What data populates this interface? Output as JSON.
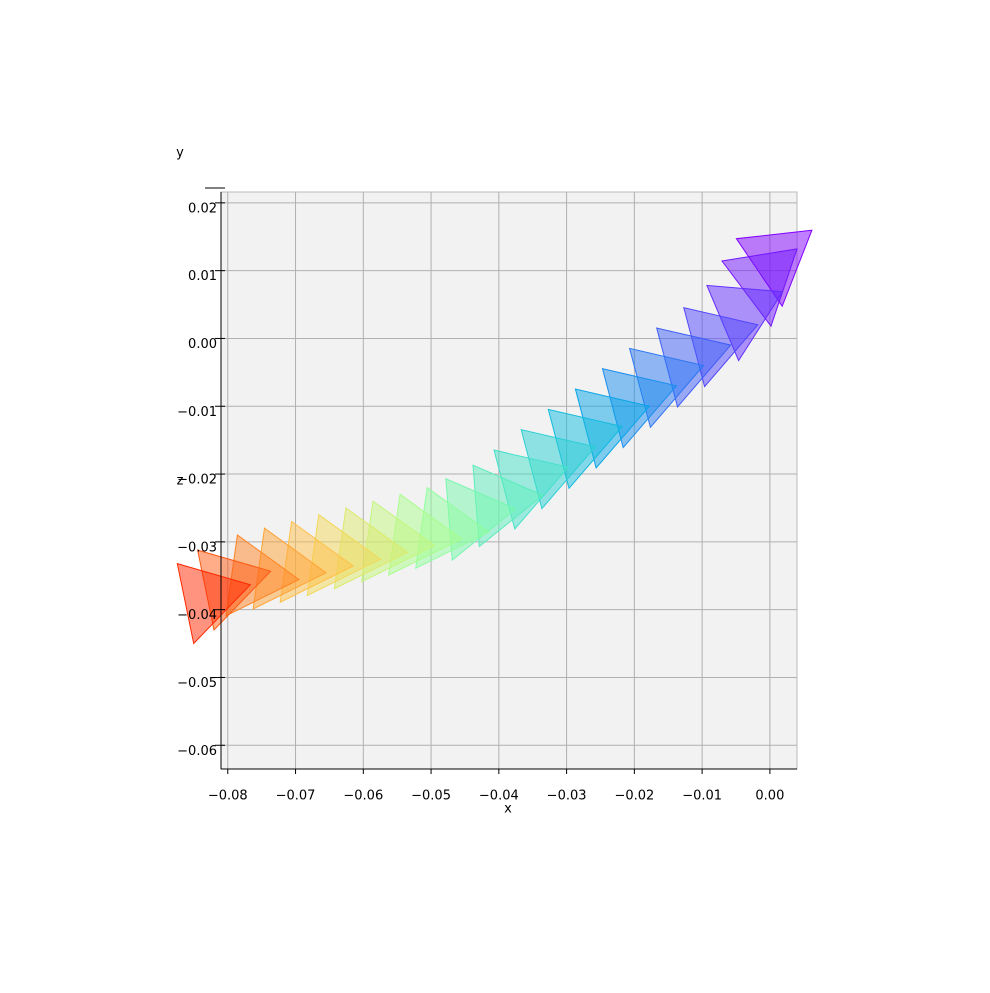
{
  "chart_data": {
    "type": "pose-trajectory",
    "xlabel": "x",
    "ylabel": "y",
    "zlabel": "z",
    "xlim": [
      -0.081,
      0.004
    ],
    "zlim": [
      -0.0635,
      0.0216
    ],
    "xticks": [
      {
        "value": -0.08,
        "label": "−0.08"
      },
      {
        "value": -0.07,
        "label": "−0.07"
      },
      {
        "value": -0.06,
        "label": "−0.06"
      },
      {
        "value": -0.05,
        "label": "−0.05"
      },
      {
        "value": -0.04,
        "label": "−0.04"
      },
      {
        "value": -0.03,
        "label": "−0.03"
      },
      {
        "value": -0.02,
        "label": "−0.02"
      },
      {
        "value": -0.01,
        "label": "−0.01"
      },
      {
        "value": 0.0,
        "label": "0.00"
      }
    ],
    "zticks": [
      {
        "value": 0.02,
        "label": "0.02"
      },
      {
        "value": 0.01,
        "label": "0.01"
      },
      {
        "value": 0.0,
        "label": "0.00"
      },
      {
        "value": -0.01,
        "label": "−0.01"
      },
      {
        "value": -0.02,
        "label": "−0.02"
      },
      {
        "value": -0.03,
        "label": "−0.03"
      },
      {
        "value": -0.04,
        "label": "−0.04"
      },
      {
        "value": -0.05,
        "label": "−0.05"
      },
      {
        "value": -0.06,
        "label": "−0.06"
      }
    ],
    "grid": true,
    "x": [
      0.001,
      -0.001,
      -0.004,
      -0.008,
      -0.012,
      -0.016,
      -0.02,
      -0.024,
      -0.028,
      -0.032,
      -0.036,
      -0.04,
      -0.044,
      -0.048,
      -0.052,
      -0.056,
      -0.06,
      -0.064,
      -0.068,
      -0.072,
      -0.076,
      -0.08,
      -0.083
    ],
    "values": [
      0.012,
      0.009,
      0.004,
      0.0,
      -0.003,
      -0.006,
      -0.009,
      -0.012,
      -0.015,
      -0.018,
      -0.021,
      -0.024,
      -0.026,
      -0.028,
      -0.029,
      -0.03,
      -0.031,
      -0.032,
      -0.033,
      -0.034,
      -0.035,
      -0.036,
      -0.038
    ],
    "colors": [
      "#8000ff",
      "#7216ff",
      "#622dfe",
      "#5045fc",
      "#3e5ef8",
      "#2c77f3",
      "#1a8eee",
      "#08a4e7",
      "#12bbde",
      "#2ad0d4",
      "#44e1c8",
      "#5cedbb",
      "#76f7ad",
      "#90fd9e",
      "#aafd8e",
      "#c3f67d",
      "#dce96c",
      "#f2d85a",
      "#ffc048",
      "#ffa436",
      "#ff8324",
      "#ff5a12",
      "#ff2800"
    ]
  }
}
